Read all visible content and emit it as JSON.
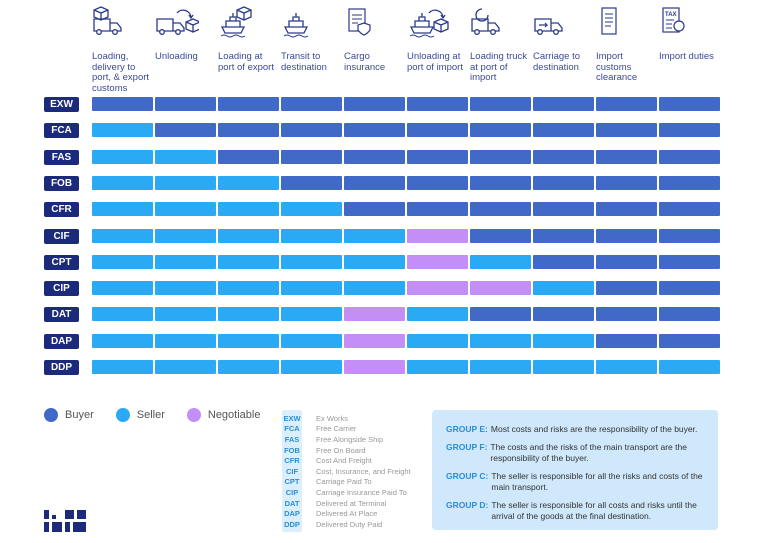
{
  "columns": [
    "Loading, delivery to port, & export customs",
    "Unloading",
    "Loading at port of export",
    "Transit to destination",
    "Cargo insurance",
    "Unloading at port of import",
    "Loading truck at port of import",
    "Carriage to destination",
    "Import customs clearance",
    "Import duties"
  ],
  "column_icons": [
    "box-truck-icon",
    "unloading-truck-icon",
    "ship-loading-icon",
    "ship-icon",
    "insurance-document-icon",
    "ship-unloading-icon",
    "truck-loading-icon",
    "truck-carriage-icon",
    "customs-scroll-icon",
    "tax-document-icon"
  ],
  "colors": {
    "buyer": "#4169c8",
    "seller": "#2aaaf5",
    "negotiable": "#c38ff7",
    "code_bg": "#1b2a7a"
  },
  "rows": [
    {
      "code": "EXW",
      "cells": "BBBBBBBBBB"
    },
    {
      "code": "FCA",
      "cells": "SBBBBBBBBB"
    },
    {
      "code": "FAS",
      "cells": "SSBBBBBBBB"
    },
    {
      "code": "FOB",
      "cells": "SSSBBBBBBB"
    },
    {
      "code": "CFR",
      "cells": "SSSSBBBBBB"
    },
    {
      "code": "CIF",
      "cells": "SSSSSNBBBB"
    },
    {
      "code": "CPT",
      "cells": "SSSSSNSBBB"
    },
    {
      "code": "CIP",
      "cells": "SSSSSNNSBB"
    },
    {
      "code": "DAT",
      "cells": "SSSSNSBBBB"
    },
    {
      "code": "DAP",
      "cells": "SSSSNSSSBB"
    },
    {
      "code": "DDP",
      "cells": "SSSSNSSSSS"
    }
  ],
  "legend": {
    "buyer": "Buyer",
    "seller": "Seller",
    "negotiable": "Negotiable"
  },
  "abbreviations": [
    {
      "code": "EXW",
      "name": "Ex Works"
    },
    {
      "code": "FCA",
      "name": "Free Carrier"
    },
    {
      "code": "FAS",
      "name": "Free Alongside Ship"
    },
    {
      "code": "FOB",
      "name": "Free On Board"
    },
    {
      "code": "CFR",
      "name": "Cost And Freight"
    },
    {
      "code": "CIF",
      "name": "Cost, Insurance, and Freight"
    },
    {
      "code": "CPT",
      "name": "Carriage Paid To"
    },
    {
      "code": "CIP",
      "name": "Carriage Insurance Paid To"
    },
    {
      "code": "DAT",
      "name": "Delivered at Terminal"
    },
    {
      "code": "DAP",
      "name": "Delivered At Place"
    },
    {
      "code": "DDP",
      "name": "Delivered Duty Paid"
    }
  ],
  "groups": [
    {
      "label": "GROUP E:",
      "text": "Most costs and risks are the responsibility of the buyer."
    },
    {
      "label": "GROUP F:",
      "text": "The costs and the risks of the main transport are the responsibility of the buyer."
    },
    {
      "label": "GROUP C:",
      "text": "The seller is responsible for all the risks and costs of the main transport."
    },
    {
      "label": "GROUP D:",
      "text": "The seller is responsible for all costs and risks until the arrival of the goods at the final destination."
    }
  ]
}
